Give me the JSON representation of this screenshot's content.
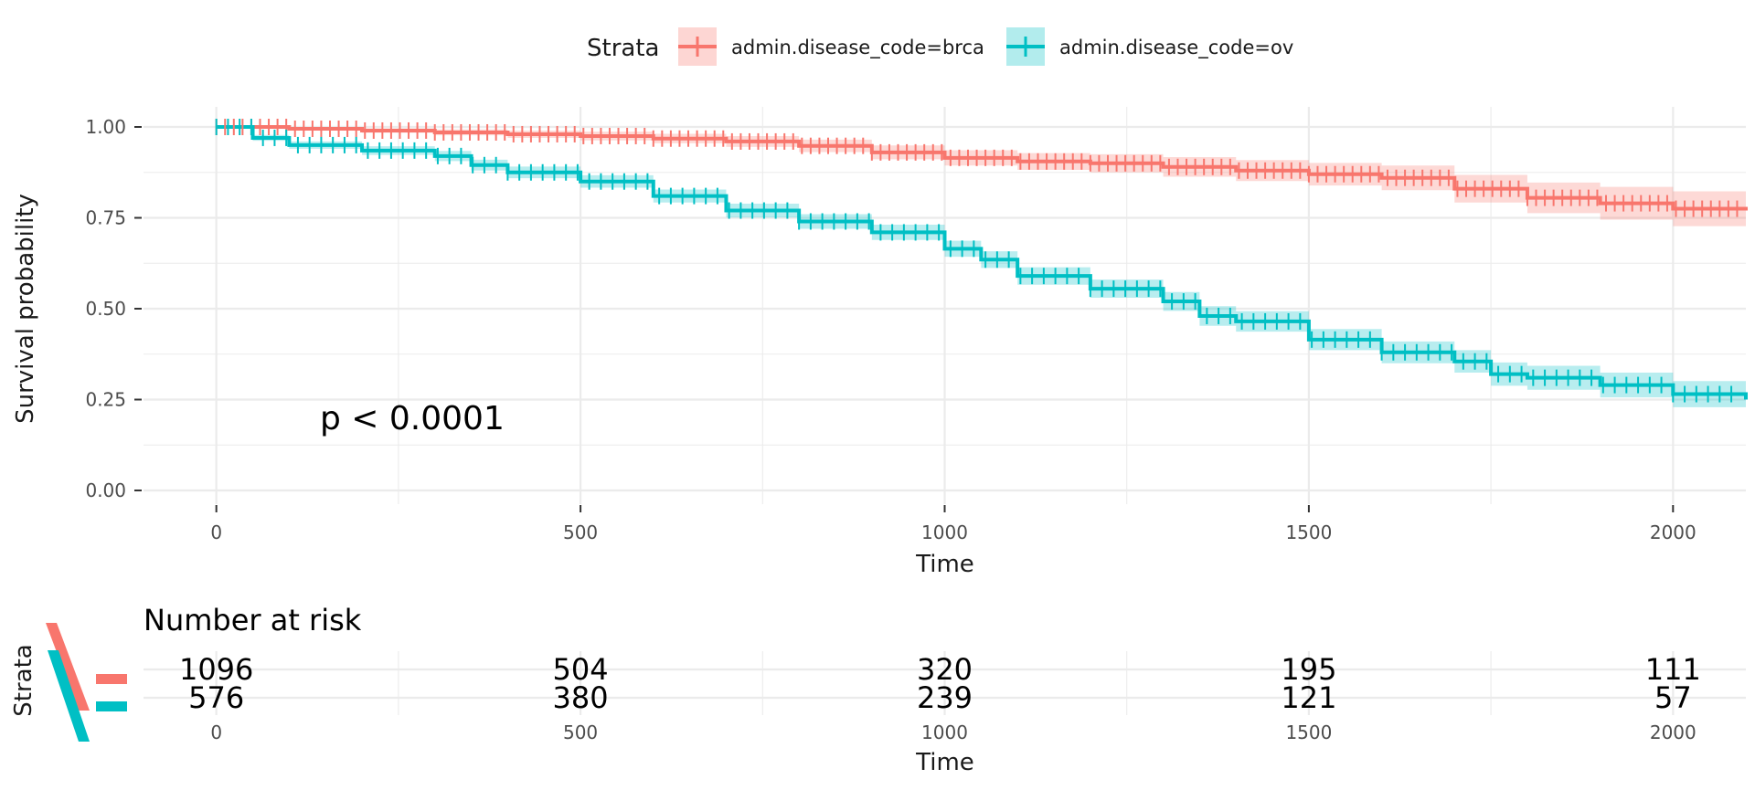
{
  "legend": {
    "title": "Strata",
    "items": [
      {
        "label": "admin.disease_code=brca",
        "color": "#F8766D"
      },
      {
        "label": "admin.disease_code=ov",
        "color": "#00BFC4"
      }
    ]
  },
  "pvalue_text": "p < 0.0001",
  "chart_data": {
    "type": "line",
    "title": "",
    "xlabel": "Time",
    "ylabel": "Survival probability",
    "xlim": [
      -100,
      2100
    ],
    "ylim": [
      0,
      1
    ],
    "x_ticks": [
      "0",
      "500",
      "1000",
      "1500",
      "2000"
    ],
    "y_ticks": [
      "0.00",
      "0.25",
      "0.50",
      "0.75",
      "1.00"
    ],
    "grid": true,
    "legend_position": "top",
    "series": [
      {
        "name": "admin.disease_code=brca",
        "color": "#F8766D",
        "x": [
          0,
          100,
          200,
          300,
          400,
          500,
          600,
          700,
          800,
          900,
          1000,
          1100,
          1200,
          1300,
          1400,
          1500,
          1600,
          1700,
          1800,
          1900,
          2000,
          2100
        ],
        "y": [
          1.0,
          0.995,
          0.99,
          0.985,
          0.98,
          0.975,
          0.968,
          0.96,
          0.948,
          0.93,
          0.915,
          0.905,
          0.9,
          0.89,
          0.88,
          0.87,
          0.86,
          0.83,
          0.805,
          0.79,
          0.775,
          0.77
        ],
        "ci_width": [
          0.0,
          0.004,
          0.006,
          0.008,
          0.01,
          0.012,
          0.013,
          0.015,
          0.017,
          0.019,
          0.021,
          0.023,
          0.025,
          0.027,
          0.029,
          0.031,
          0.034,
          0.038,
          0.042,
          0.045,
          0.048,
          0.05
        ]
      },
      {
        "name": "admin.disease_code=ov",
        "color": "#00BFC4",
        "x": [
          0,
          50,
          100,
          200,
          300,
          350,
          400,
          500,
          600,
          700,
          800,
          900,
          1000,
          1050,
          1100,
          1200,
          1300,
          1350,
          1400,
          1500,
          1600,
          1700,
          1750,
          1800,
          1900,
          2000,
          2100
        ],
        "y": [
          1.0,
          0.97,
          0.95,
          0.935,
          0.92,
          0.895,
          0.875,
          0.85,
          0.81,
          0.77,
          0.74,
          0.71,
          0.665,
          0.635,
          0.59,
          0.555,
          0.52,
          0.48,
          0.465,
          0.415,
          0.38,
          0.355,
          0.32,
          0.31,
          0.29,
          0.265,
          0.25
        ],
        "ci_width": [
          0.0,
          0.008,
          0.01,
          0.012,
          0.014,
          0.015,
          0.016,
          0.017,
          0.018,
          0.019,
          0.02,
          0.021,
          0.022,
          0.023,
          0.024,
          0.025,
          0.026,
          0.027,
          0.028,
          0.029,
          0.03,
          0.031,
          0.032,
          0.033,
          0.034,
          0.036,
          0.038
        ]
      }
    ]
  },
  "risk_table": {
    "title": "Number at risk",
    "ylabel": "Strata",
    "xlabel": "Time",
    "x_ticks": [
      "0",
      "500",
      "1000",
      "1500",
      "2000"
    ],
    "rows": [
      {
        "name": "admin.disease_code=brca",
        "color": "#F8766D",
        "values": [
          "1096",
          "504",
          "320",
          "195",
          "111"
        ]
      },
      {
        "name": "admin.disease_code=ov",
        "color": "#00BFC4",
        "values": [
          "576",
          "380",
          "239",
          "121",
          "57"
        ]
      }
    ]
  }
}
